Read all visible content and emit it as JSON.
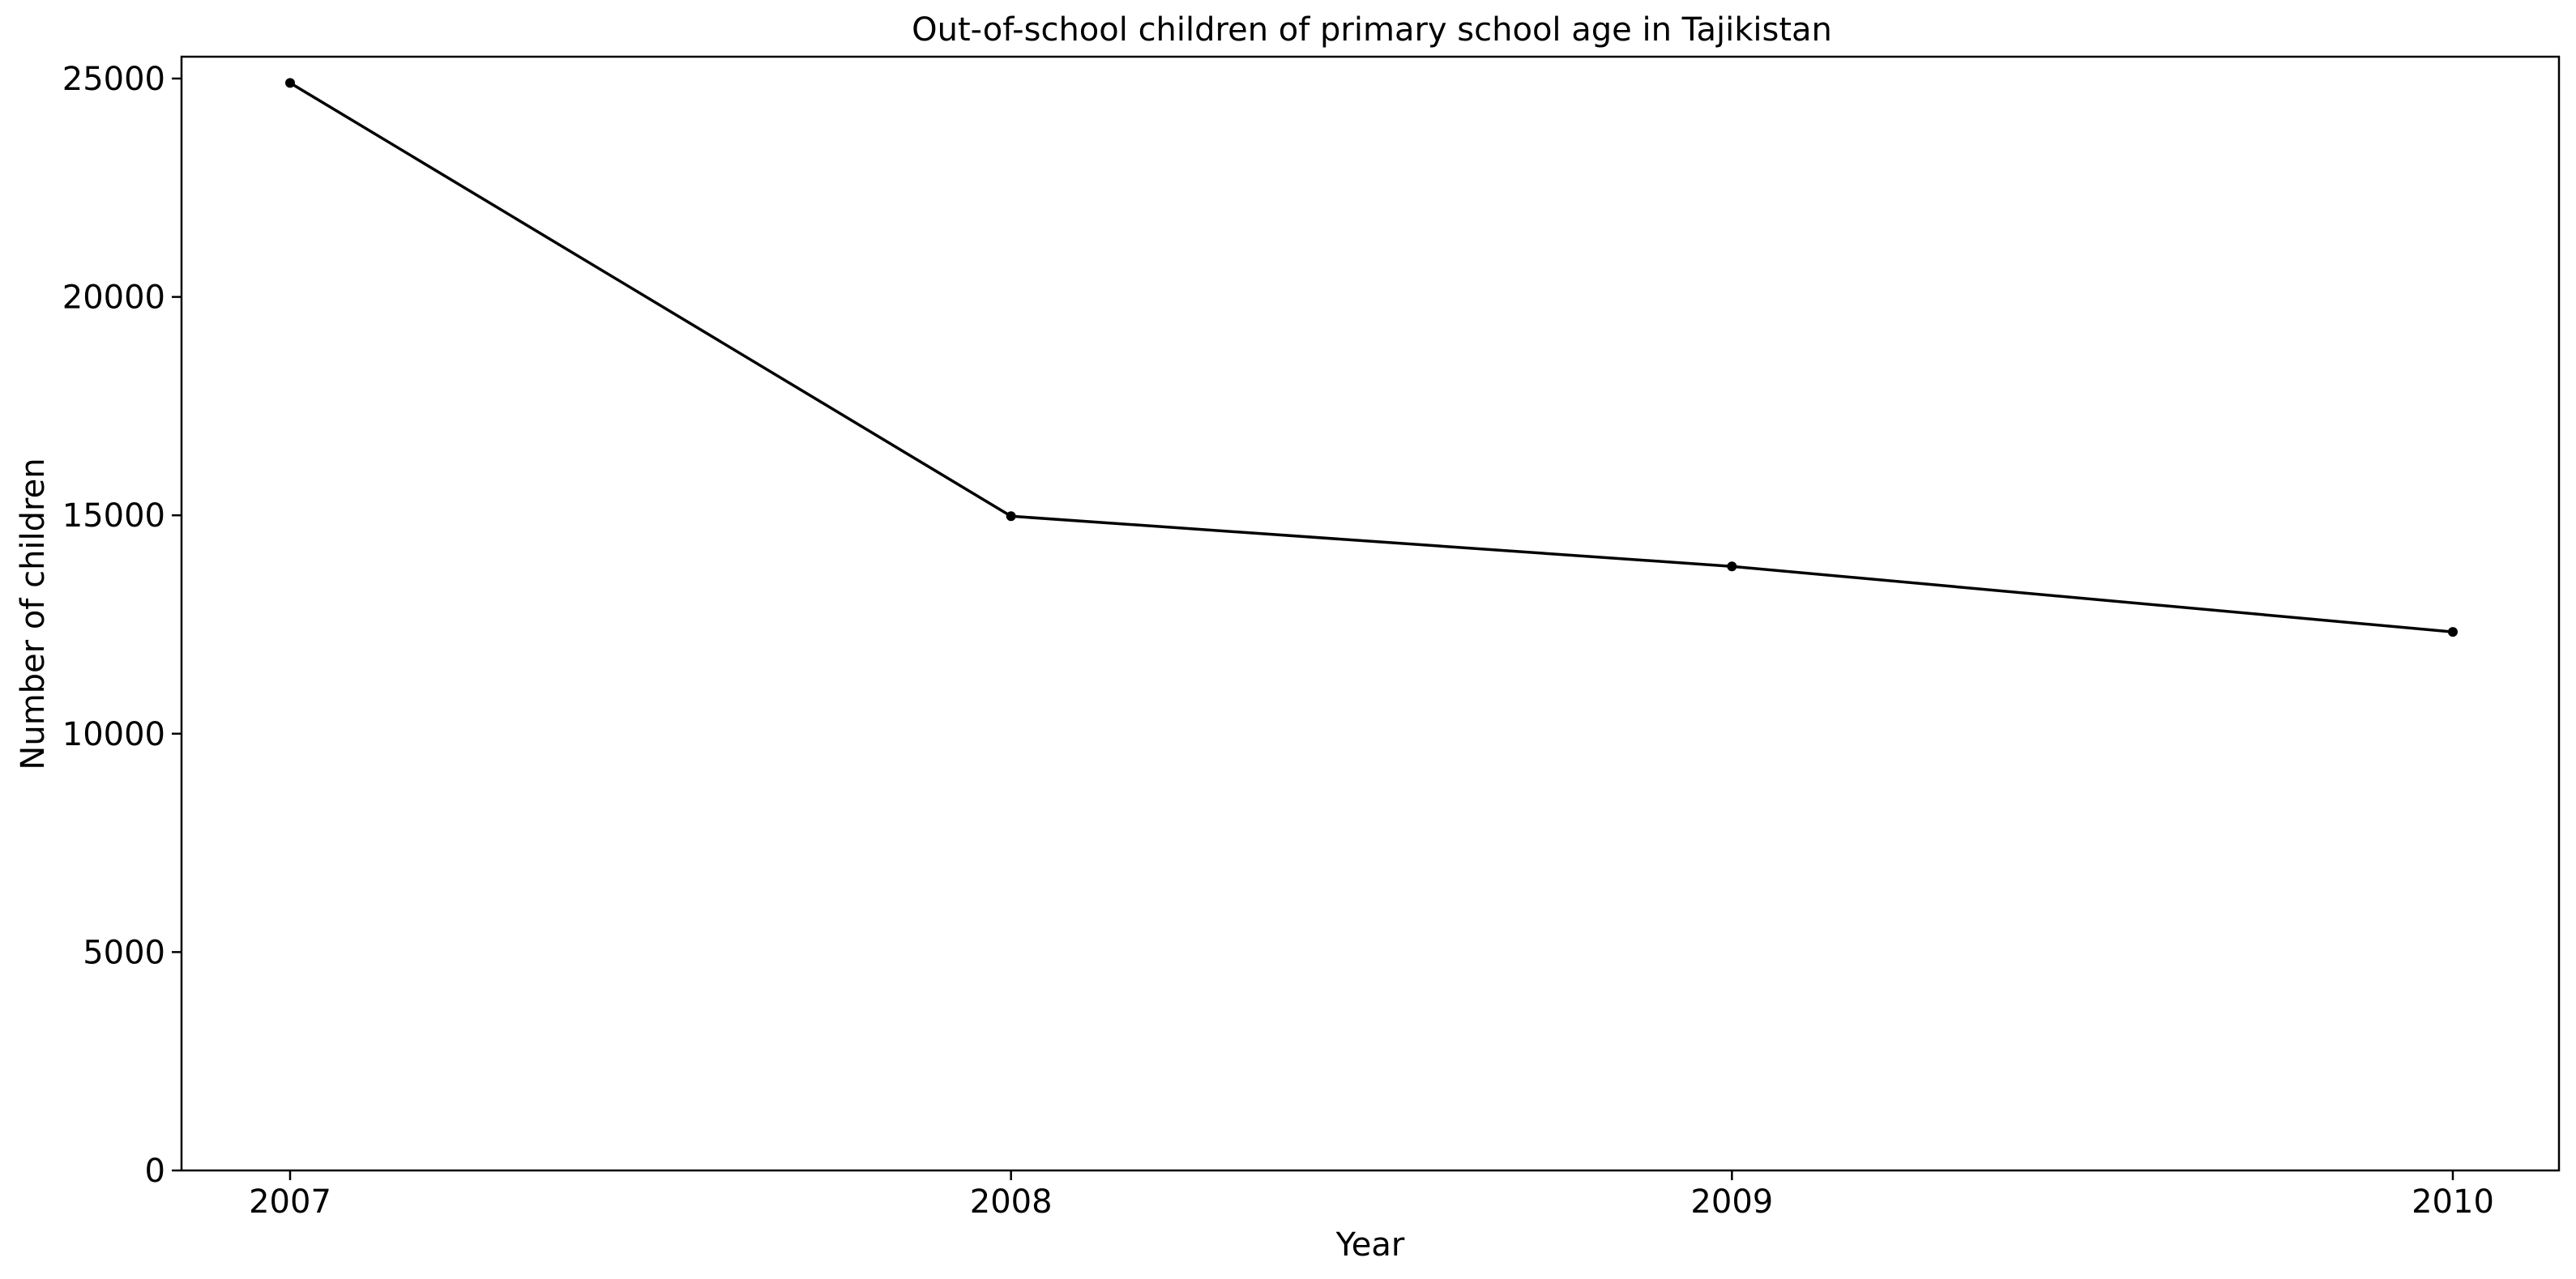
{
  "chart_data": {
    "type": "line",
    "title": "Out-of-school children of primary school age in Tajikistan",
    "xlabel": "Year",
    "ylabel": "Number of children",
    "x": [
      "2007",
      "2008",
      "2009",
      "2010"
    ],
    "series": [
      {
        "values": [
          24900,
          14980,
          13830,
          12330
        ],
        "color": "#000000",
        "marker": "dot"
      }
    ],
    "ylim": [
      0,
      25500
    ],
    "yticks": [
      0,
      5000,
      10000,
      15000,
      20000,
      25000
    ],
    "grid": false,
    "legend": "none"
  }
}
